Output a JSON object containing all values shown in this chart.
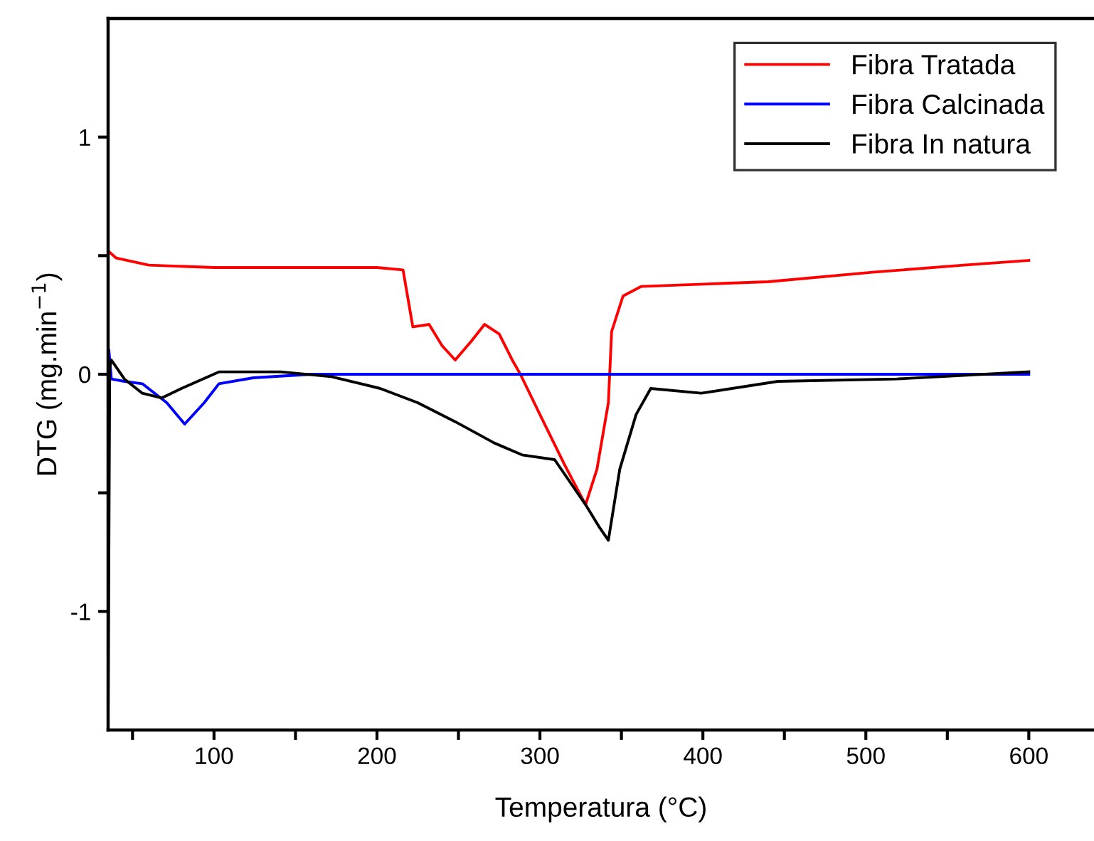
{
  "chart_data": {
    "type": "line",
    "xlabel": "Temperatura (°C)",
    "ylabel": "DTG (mg.min$^{−1}$)",
    "xlim": [
      35,
      640
    ],
    "ylim": [
      -1.5,
      1.5
    ],
    "xticks": [
      {
        "value": 50,
        "label": null
      },
      100,
      {
        "value": 150,
        "label": null
      },
      200,
      {
        "value": 250,
        "label": null
      },
      300,
      {
        "value": 350,
        "label": null
      },
      400,
      {
        "value": 450,
        "label": null
      },
      500,
      {
        "value": 550,
        "label": null
      },
      600
    ],
    "yticks": [
      -1,
      {
        "value": -0.5,
        "label": null
      },
      0,
      {
        "value": 0.5,
        "label": null
      },
      1
    ],
    "grid": false,
    "legend": "top right",
    "line_style": "solid",
    "marker": "none",
    "series": [
      {
        "name": "Fibra Tratada",
        "color": "#ff0000",
        "x": [
          35,
          40,
          60,
          100,
          150,
          200,
          216,
          222,
          232,
          240,
          248,
          258,
          266,
          275,
          283,
          288,
          300,
          315,
          328,
          335,
          342,
          344,
          351,
          362,
          400,
          440,
          504,
          560,
          600
        ],
        "values": [
          0.52,
          0.49,
          0.46,
          0.45,
          0.45,
          0.45,
          0.44,
          0.2,
          0.21,
          0.12,
          0.06,
          0.14,
          0.21,
          0.17,
          0.06,
          0.0,
          -0.17,
          -0.38,
          -0.55,
          -0.4,
          -0.12,
          0.18,
          0.33,
          0.37,
          0.38,
          0.39,
          0.43,
          0.46,
          0.48
        ]
      },
      {
        "name": "Fibra Calcinada",
        "color": "#0000ff",
        "x": [
          35.5,
          37,
          45,
          56,
          71,
          82,
          94,
          103,
          124,
          160,
          250,
          400,
          600
        ],
        "values": [
          0.1,
          -0.02,
          -0.03,
          -0.04,
          -0.12,
          -0.21,
          -0.12,
          -0.04,
          -0.015,
          0.0,
          0.0,
          0.0,
          0.0
        ]
      },
      {
        "name": "Fibra In natura",
        "color": "#000000",
        "x": [
          35,
          36,
          37,
          45,
          56,
          68,
          80,
          103,
          141,
          172,
          202,
          225,
          248,
          272,
          289,
          309,
          318,
          328,
          336,
          342,
          349,
          359,
          368,
          399,
          446,
          519,
          600
        ],
        "values": [
          -1.5,
          0.03,
          0.06,
          -0.02,
          -0.08,
          -0.1,
          -0.06,
          0.01,
          0.01,
          -0.01,
          -0.06,
          -0.12,
          -0.2,
          -0.29,
          -0.34,
          -0.36,
          -0.45,
          -0.55,
          -0.64,
          -0.7,
          -0.4,
          -0.17,
          -0.06,
          -0.08,
          -0.03,
          -0.02,
          0.01
        ]
      }
    ]
  }
}
